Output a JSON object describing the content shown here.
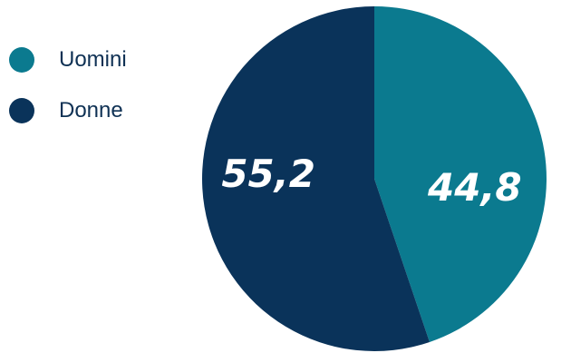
{
  "chart_data": {
    "type": "pie",
    "title": "",
    "slices": [
      {
        "name": "Uomini",
        "value": 44.8,
        "label": "44,8",
        "color": "#0b7a8f"
      },
      {
        "name": "Donne",
        "value": 55.2,
        "label": "55,2",
        "color": "#0a335a"
      }
    ],
    "start": "12 o'clock",
    "direction": "clockwise",
    "legend": {
      "position": "top-left",
      "items": [
        {
          "label": "Uomini",
          "color": "#0b7a8f"
        },
        {
          "label": "Donne",
          "color": "#0a335a"
        }
      ]
    }
  }
}
